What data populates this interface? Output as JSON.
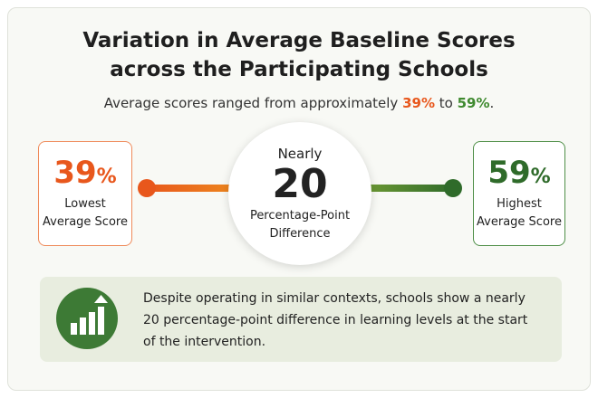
{
  "header": {
    "title_lines": [
      "Variation in Average Baseline Scores",
      "across the Participating Schools"
    ],
    "subtitle": {
      "before": "Average scores ranged from approximately ",
      "low": "39%",
      "middle": " to ",
      "high": "59%",
      "after": "."
    }
  },
  "low_card": {
    "number": "39",
    "unit": "%",
    "label_lines": [
      "Lowest",
      "Average Score"
    ]
  },
  "center": {
    "prefix": "Nearly",
    "number": "20",
    "label_lines": [
      "Percentage-Point",
      "Difference"
    ]
  },
  "high_card": {
    "number": "59",
    "unit": "%",
    "label_lines": [
      "Highest",
      "Average Score"
    ]
  },
  "note": {
    "lines": [
      "Despite operating in similar contexts, schools show a nearly",
      "20 percentage-point difference in learning levels at the start",
      "of the intervention."
    ]
  }
}
